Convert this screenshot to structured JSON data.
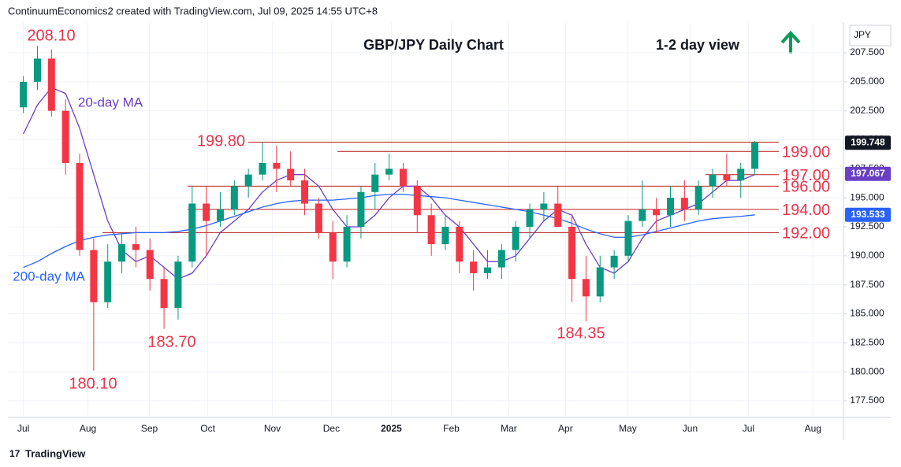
{
  "header": "ContinuumEconomics2 created with TradingView.com, Jul 09, 2025 14:55 UTC+8",
  "footer": "TradingView",
  "chart_data": {
    "type": "candlestick",
    "title": "GBP/JPY Daily Chart",
    "subtitle": "1-2 day view",
    "y_axis_label": "JPY",
    "x": [
      0,
      1,
      2,
      3,
      4,
      5,
      6,
      7,
      8,
      9,
      10,
      11,
      12,
      13,
      14,
      15,
      16,
      17,
      18,
      19,
      20,
      21,
      22,
      23,
      24,
      25,
      26,
      27,
      28,
      29,
      30,
      31,
      32,
      33,
      34,
      35,
      36,
      37,
      38,
      39,
      40,
      41,
      42,
      43,
      44,
      45,
      46,
      47,
      48,
      49,
      50,
      51,
      52
    ],
    "candles": {
      "up_color": "#089981",
      "down_color": "#f23645",
      "last": 199.748,
      "tag_color": "#131722",
      "open": [
        202.8,
        205.0,
        207.0,
        202.5,
        198.0,
        190.5,
        186.0,
        189.5,
        191.0,
        190.5,
        188.0,
        185.5,
        189.5,
        194.5,
        193.0,
        194.0,
        196.0,
        197.0,
        198.0,
        197.5,
        196.5,
        194.5,
        192.0,
        189.5,
        192.5,
        195.5,
        197.0,
        197.5,
        196.0,
        193.5,
        191.0,
        192.5,
        189.5,
        188.5,
        189.0,
        190.5,
        192.5,
        194.0,
        194.5,
        192.5,
        188.0,
        186.5,
        189.0,
        190.0,
        193.0,
        194.0,
        193.5,
        195.0,
        194.0,
        196.0,
        197.0,
        196.5,
        197.5
      ],
      "high": [
        205.5,
        208.1,
        207.8,
        203.5,
        198.8,
        191.5,
        191.0,
        192.0,
        192.5,
        191.5,
        189.0,
        190.0,
        196.0,
        196.0,
        195.5,
        196.5,
        197.5,
        199.8,
        199.5,
        199.0,
        197.5,
        195.0,
        193.0,
        193.5,
        196.0,
        198.0,
        198.8,
        198.0,
        196.5,
        194.5,
        193.5,
        193.0,
        190.5,
        190.5,
        191.0,
        193.0,
        194.5,
        195.5,
        196.0,
        193.5,
        190.0,
        190.0,
        190.5,
        193.5,
        196.5,
        195.0,
        196.0,
        196.5,
        196.5,
        197.5,
        198.8,
        198.0,
        199.9
      ],
      "low": [
        202.3,
        204.3,
        202.0,
        197.0,
        190.0,
        180.1,
        185.5,
        188.5,
        189.0,
        187.0,
        183.7,
        184.5,
        189.0,
        190.0,
        192.5,
        193.5,
        195.0,
        196.5,
        195.5,
        196.0,
        193.5,
        191.5,
        188.0,
        189.0,
        191.5,
        194.0,
        196.5,
        195.5,
        192.0,
        190.0,
        190.5,
        188.5,
        187.0,
        188.0,
        188.0,
        189.5,
        191.5,
        193.0,
        193.5,
        186.0,
        184.35,
        186.0,
        188.0,
        189.5,
        192.5,
        192.0,
        192.5,
        193.0,
        193.5,
        195.0,
        196.0,
        195.0,
        197.0
      ],
      "close": [
        205.0,
        207.0,
        202.5,
        198.0,
        190.5,
        186.0,
        189.5,
        191.0,
        190.5,
        188.0,
        185.5,
        189.5,
        194.5,
        193.0,
        194.0,
        196.0,
        197.0,
        198.0,
        197.5,
        196.5,
        194.5,
        192.0,
        189.5,
        192.5,
        195.5,
        197.0,
        197.5,
        196.0,
        193.5,
        191.0,
        192.5,
        189.5,
        188.5,
        189.0,
        190.5,
        192.5,
        194.0,
        194.5,
        192.5,
        188.0,
        186.5,
        189.0,
        190.0,
        193.0,
        194.0,
        193.5,
        195.0,
        194.0,
        196.0,
        197.0,
        196.5,
        197.5,
        199.75
      ]
    },
    "series": [
      {
        "name": "20-day MA",
        "color": "#6a3fc4",
        "last": 197.067,
        "values": [
          200.5,
          203,
          204.5,
          204,
          201,
          197,
          193,
          190.5,
          189.5,
          190,
          189,
          188,
          188.5,
          190,
          192,
          193,
          194,
          195.5,
          196.5,
          197,
          197,
          196,
          194,
          192.5,
          192.5,
          193.5,
          195,
          196,
          196,
          195,
          193.5,
          192.5,
          191,
          189.5,
          189.5,
          190,
          191.5,
          193,
          194,
          193.5,
          191,
          189,
          188.5,
          189.5,
          191.5,
          193,
          193.5,
          194,
          194.5,
          195.5,
          196.5,
          196.5,
          197
        ]
      },
      {
        "name": "200-day MA",
        "color": "#2962ff",
        "last": 193.533,
        "values": [
          189,
          189.5,
          190.2,
          190.8,
          191.3,
          191.6,
          191.8,
          191.9,
          192,
          192,
          192,
          192.1,
          192.3,
          192.6,
          193,
          193.4,
          193.8,
          194.2,
          194.5,
          194.7,
          194.8,
          194.8,
          194.8,
          194.9,
          195,
          195.2,
          195.3,
          195.3,
          195.2,
          195.1,
          195,
          194.8,
          194.6,
          194.4,
          194.2,
          194,
          193.8,
          193.5,
          193.2,
          192.8,
          192.3,
          191.9,
          191.6,
          191.6,
          191.8,
          192.1,
          192.4,
          192.7,
          193,
          193.2,
          193.3,
          193.4,
          193.53
        ]
      }
    ],
    "levels": [
      {
        "value": 199.8,
        "label": "199.80"
      },
      {
        "value": 199,
        "label": "199.00"
      },
      {
        "value": 197,
        "label": "197.00"
      },
      {
        "value": 196,
        "label": "196.00"
      },
      {
        "value": 194,
        "label": "194.00"
      },
      {
        "value": 192,
        "label": "192.00"
      }
    ],
    "annotations": [
      {
        "value": 208.1,
        "label": "208.10"
      },
      {
        "value": 180.1,
        "label": "180.10"
      },
      {
        "value": 183.7,
        "label": "183.70"
      },
      {
        "value": 184.35,
        "label": "184.35"
      }
    ],
    "xlim": [
      -1.1,
      58.3
    ],
    "xticks": [
      {
        "value": 0,
        "label": "Jul"
      },
      {
        "value": 4.59,
        "label": "Aug"
      },
      {
        "value": 8.96,
        "label": "Sep"
      },
      {
        "value": 13.11,
        "label": "Oct"
      },
      {
        "value": 17.7,
        "label": "Nov"
      },
      {
        "value": 21.9,
        "label": "Dec"
      },
      {
        "value": 26.16,
        "label": "2025"
      },
      {
        "value": 30.42,
        "label": "Feb"
      },
      {
        "value": 34.51,
        "label": "Mar"
      },
      {
        "value": 38.54,
        "label": "Apr"
      },
      {
        "value": 42.97,
        "label": "May"
      },
      {
        "value": 47.4,
        "label": "Jun"
      },
      {
        "value": 51.54,
        "label": "Jul"
      },
      {
        "value": 56.13,
        "label": "Aug"
      }
    ],
    "ylim": [
      176.07,
      210.15
    ],
    "yticks": [
      {
        "value": 177.5,
        "label": "177.500"
      },
      {
        "value": 180,
        "label": "180.000"
      },
      {
        "value": 182.5,
        "label": "182.500"
      },
      {
        "value": 185,
        "label": "185.000"
      },
      {
        "value": 187.5,
        "label": "187.500"
      },
      {
        "value": 190,
        "label": "190.000"
      },
      {
        "value": 192.5,
        "label": "192.500"
      },
      {
        "value": 195,
        "label": "195.000"
      },
      {
        "value": 197.5,
        "label": "197.500"
      },
      {
        "value": 200,
        "label": "200.000"
      },
      {
        "value": 202.5,
        "label": "202.500"
      },
      {
        "value": 205,
        "label": "205.000"
      },
      {
        "value": 207.5,
        "label": "207.500"
      }
    ],
    "grid": true
  }
}
